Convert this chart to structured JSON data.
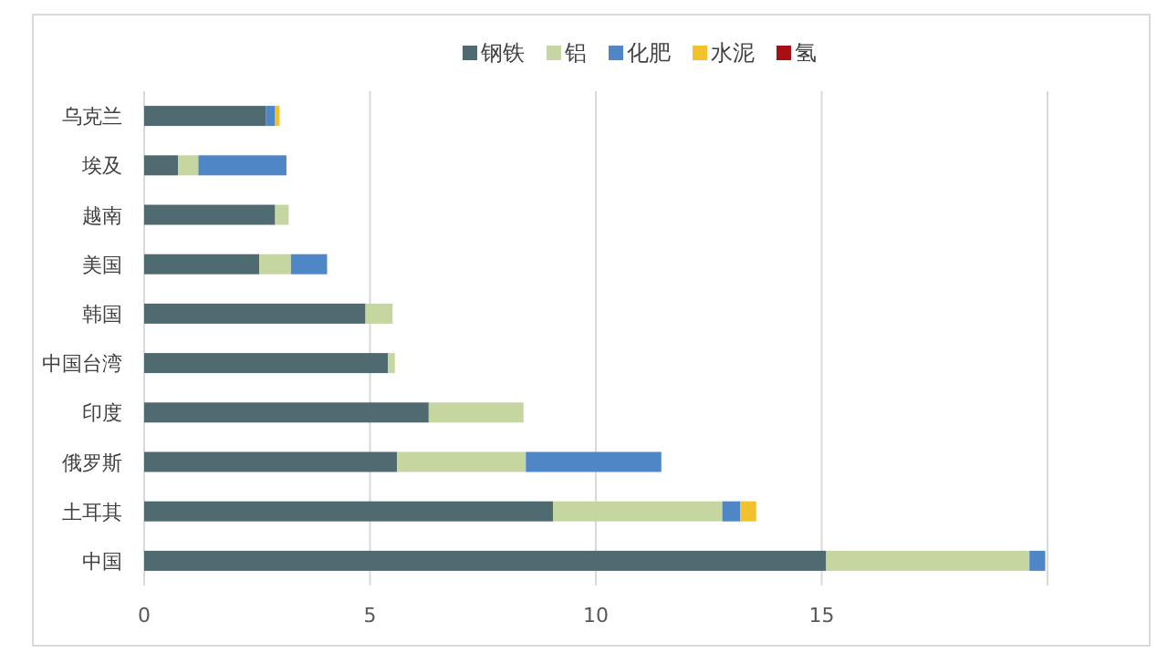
{
  "chart_data": {
    "type": "bar",
    "orientation": "horizontal",
    "stacked": true,
    "categories": [
      "乌克兰",
      "埃及",
      "越南",
      "美国",
      "韩国",
      "中国台湾",
      "印度",
      "俄罗斯",
      "土耳其",
      "中国"
    ],
    "series": [
      {
        "name": "钢铁",
        "color": "#4f6a70",
        "values": [
          2.7,
          0.75,
          2.9,
          2.55,
          4.9,
          5.4,
          6.3,
          5.6,
          9.05,
          15.1
        ]
      },
      {
        "name": "铝",
        "color": "#c5d6a0",
        "values": [
          null,
          0.45,
          0.3,
          0.7,
          0.6,
          0.15,
          2.1,
          2.85,
          3.75,
          4.5
        ]
      },
      {
        "name": "化肥",
        "color": "#4f86c6",
        "values": [
          0.2,
          1.95,
          null,
          0.8,
          null,
          null,
          null,
          3.0,
          0.4,
          0.35
        ]
      },
      {
        "name": "水泥",
        "color": "#f2c12e",
        "values": [
          0.1,
          null,
          null,
          null,
          null,
          null,
          null,
          null,
          0.35,
          null
        ]
      },
      {
        "name": "氢",
        "color": "#a50f15",
        "values": [
          null,
          null,
          null,
          null,
          null,
          null,
          null,
          null,
          null,
          null
        ]
      }
    ],
    "xlim": [
      0,
      20
    ],
    "xticks": [
      0,
      5,
      10,
      15,
      {
        "value": 20,
        "label": null
      }
    ],
    "grid": "x",
    "legend": "top"
  }
}
